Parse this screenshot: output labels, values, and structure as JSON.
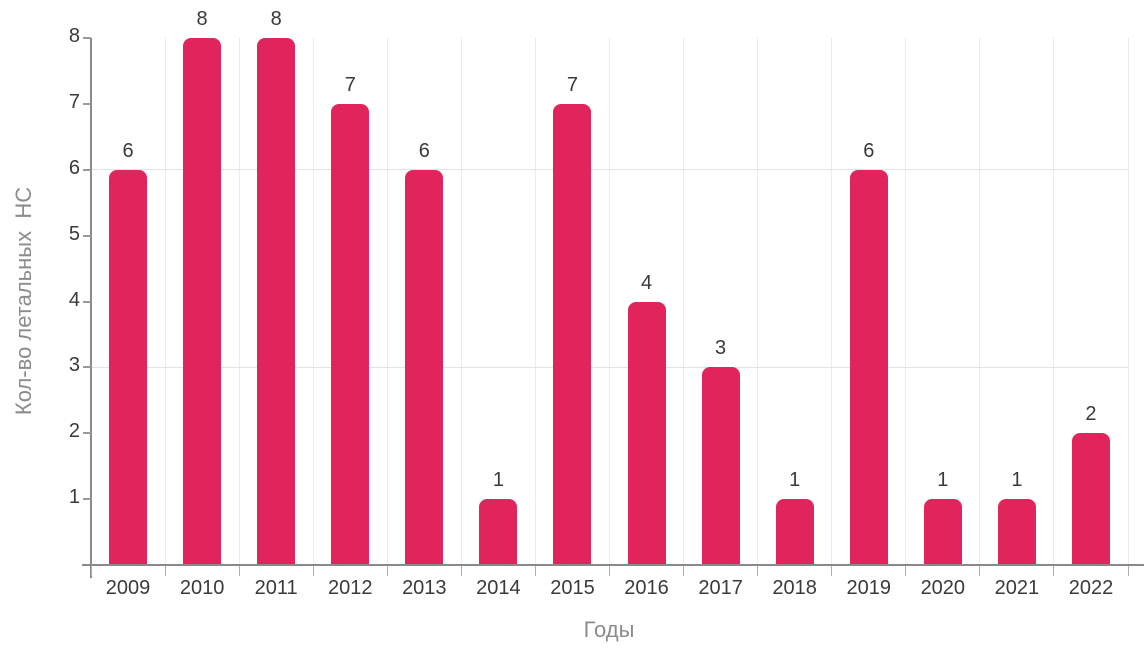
{
  "chart_data": {
    "type": "bar",
    "title": "",
    "categories": [
      "2009",
      "2010",
      "2011",
      "2012",
      "2013",
      "2014",
      "2015",
      "2016",
      "2017",
      "2018",
      "2019",
      "2020",
      "2021",
      "2022"
    ],
    "values": [
      6,
      8,
      8,
      7,
      6,
      1,
      7,
      4,
      3,
      1,
      6,
      1,
      1,
      2
    ],
    "data_labels": [
      6,
      8,
      8,
      7,
      6,
      1,
      7,
      4,
      3,
      1,
      6,
      1,
      1,
      2
    ],
    "xlabel": "Годы",
    "ylabel": "Кол-во летальных  НС",
    "ylim": [
      0,
      8
    ],
    "yticks": [
      1,
      2,
      3,
      4,
      5,
      6,
      7,
      8
    ],
    "hgridlines_at": [
      3,
      6
    ],
    "grid": "vertical at category boundaries; horizontal at 3 and 6",
    "legend_position": "none",
    "colors": {
      "bar": "#E2245C",
      "tick_label": "#3A3A3A",
      "axis_title": "#8C8C8C",
      "axis_line": "#8A8A8A",
      "vgrid": "#ECECEC",
      "hgrid": "#E2E2E2",
      "ytick_mark": "#9A9A9A",
      "xtick_mark": "#B0B0B0",
      "background": "#FFFFFF"
    }
  }
}
